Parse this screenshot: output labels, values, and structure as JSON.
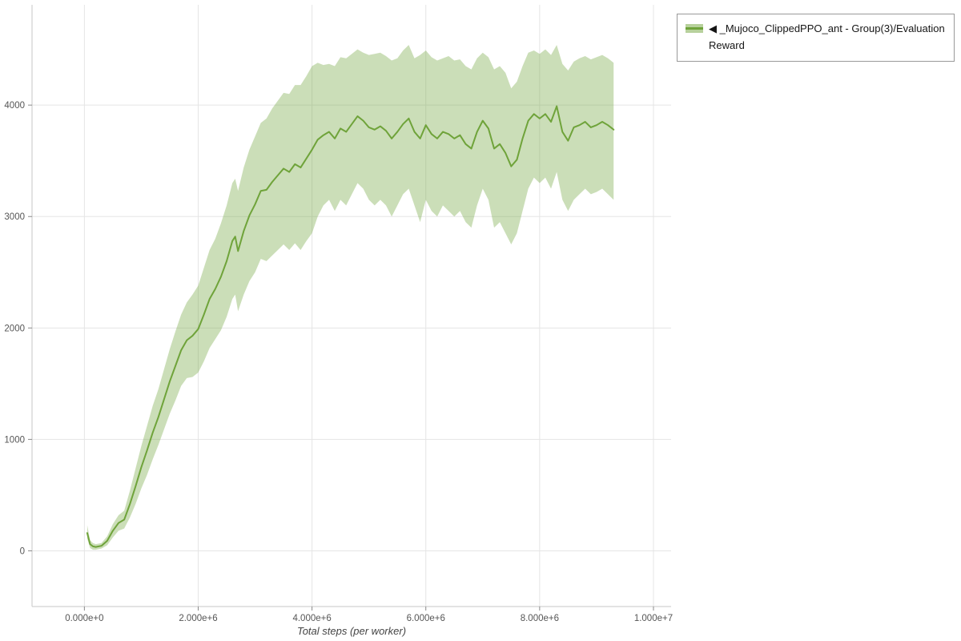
{
  "legend": {
    "items": [
      {
        "label": "◀ _Mujoco_ClippedPPO_ant - Group(3)/Evaluation Reward"
      }
    ]
  },
  "chart_data": {
    "type": "line",
    "title": "",
    "xlabel": "Total steps (per worker)",
    "ylabel": "",
    "grid": true,
    "legend_position": "top-right-outside",
    "xlim": [
      -920000,
      10310000
    ],
    "ylim": [
      -500,
      4900
    ],
    "x_ticks": [
      0,
      2000000,
      4000000,
      6000000,
      8000000,
      10000000
    ],
    "x_tick_labels": [
      "0.000e+0",
      "2.000e+6",
      "4.000e+6",
      "6.000e+6",
      "8.000e+6",
      "1.000e+7"
    ],
    "y_ticks": [
      0,
      1000,
      2000,
      3000,
      4000
    ],
    "y_tick_labels": [
      "0",
      "1000",
      "2000",
      "3000",
      "4000"
    ],
    "colors": {
      "line": "#6FA33A",
      "band": "#6FA33A",
      "band_opacity": 0.36,
      "grid": "#e5e5e5",
      "axis": "#c7c7c7",
      "tick": "#8a8a8a",
      "tick_label": "#555555",
      "axis_title": "#444444",
      "legend_border": "#999999"
    },
    "x_scale": 1000000,
    "series": [
      {
        "name": "◀ _Mujoco_ClippedPPO_ant - Group(3)/Evaluation Reward",
        "x": [
          0.05,
          0.1,
          0.15,
          0.2,
          0.3,
          0.4,
          0.5,
          0.6,
          0.7,
          0.8,
          0.9,
          1.0,
          1.1,
          1.2,
          1.3,
          1.4,
          1.5,
          1.6,
          1.7,
          1.8,
          1.9,
          2.0,
          2.1,
          2.2,
          2.3,
          2.4,
          2.5,
          2.6,
          2.65,
          2.7,
          2.8,
          2.9,
          3.0,
          3.1,
          3.2,
          3.3,
          3.4,
          3.5,
          3.6,
          3.7,
          3.8,
          3.9,
          4.0,
          4.1,
          4.2,
          4.3,
          4.4,
          4.5,
          4.6,
          4.7,
          4.8,
          4.9,
          5.0,
          5.1,
          5.2,
          5.3,
          5.4,
          5.5,
          5.6,
          5.7,
          5.8,
          5.9,
          6.0,
          6.1,
          6.2,
          6.3,
          6.4,
          6.5,
          6.6,
          6.7,
          6.8,
          6.9,
          7.0,
          7.1,
          7.2,
          7.3,
          7.4,
          7.5,
          7.6,
          7.7,
          7.8,
          7.9,
          8.0,
          8.1,
          8.2,
          8.3,
          8.4,
          8.5,
          8.6,
          8.7,
          8.8,
          8.9,
          9.0,
          9.1,
          9.2,
          9.3
        ],
        "mean": [
          160,
          60,
          40,
          35,
          45,
          90,
          180,
          250,
          280,
          420,
          580,
          750,
          900,
          1060,
          1200,
          1360,
          1520,
          1660,
          1800,
          1890,
          1930,
          1990,
          2120,
          2260,
          2350,
          2460,
          2600,
          2780,
          2820,
          2690,
          2870,
          3010,
          3110,
          3230,
          3240,
          3310,
          3370,
          3430,
          3400,
          3470,
          3440,
          3520,
          3600,
          3690,
          3730,
          3760,
          3700,
          3790,
          3760,
          3830,
          3900,
          3860,
          3800,
          3780,
          3810,
          3770,
          3700,
          3760,
          3830,
          3880,
          3760,
          3700,
          3820,
          3740,
          3700,
          3760,
          3740,
          3700,
          3730,
          3650,
          3610,
          3760,
          3860,
          3790,
          3610,
          3650,
          3570,
          3450,
          3510,
          3700,
          3860,
          3920,
          3880,
          3920,
          3850,
          3990,
          3760,
          3680,
          3800,
          3820,
          3850,
          3800,
          3820,
          3850,
          3820,
          3780
        ],
        "lower": [
          110,
          25,
          10,
          10,
          20,
          50,
          120,
          180,
          200,
          300,
          420,
          560,
          680,
          820,
          950,
          1090,
          1230,
          1350,
          1480,
          1550,
          1560,
          1600,
          1700,
          1820,
          1900,
          1980,
          2100,
          2260,
          2300,
          2150,
          2300,
          2420,
          2500,
          2620,
          2600,
          2650,
          2700,
          2750,
          2700,
          2760,
          2700,
          2780,
          2850,
          3000,
          3100,
          3150,
          3050,
          3150,
          3100,
          3200,
          3300,
          3250,
          3150,
          3100,
          3150,
          3100,
          3000,
          3100,
          3200,
          3250,
          3100,
          2950,
          3150,
          3050,
          3000,
          3100,
          3050,
          3000,
          3050,
          2950,
          2900,
          3100,
          3250,
          3150,
          2900,
          2950,
          2850,
          2750,
          2850,
          3050,
          3250,
          3350,
          3300,
          3350,
          3250,
          3400,
          3150,
          3050,
          3150,
          3200,
          3250,
          3200,
          3220,
          3250,
          3200,
          3150
        ],
        "upper": [
          230,
          95,
          70,
          60,
          70,
          130,
          240,
          320,
          360,
          540,
          740,
          940,
          1120,
          1300,
          1450,
          1630,
          1810,
          1970,
          2120,
          2230,
          2300,
          2380,
          2540,
          2700,
          2800,
          2940,
          3100,
          3300,
          3340,
          3230,
          3440,
          3600,
          3720,
          3840,
          3880,
          3970,
          4040,
          4110,
          4100,
          4180,
          4180,
          4260,
          4350,
          4380,
          4360,
          4370,
          4350,
          4430,
          4420,
          4460,
          4500,
          4470,
          4450,
          4460,
          4470,
          4440,
          4400,
          4420,
          4490,
          4540,
          4420,
          4450,
          4490,
          4430,
          4400,
          4420,
          4440,
          4400,
          4410,
          4350,
          4320,
          4420,
          4470,
          4430,
          4320,
          4350,
          4290,
          4150,
          4210,
          4350,
          4470,
          4490,
          4460,
          4500,
          4450,
          4540,
          4370,
          4310,
          4390,
          4420,
          4440,
          4410,
          4430,
          4450,
          4420,
          4380
        ]
      }
    ]
  }
}
